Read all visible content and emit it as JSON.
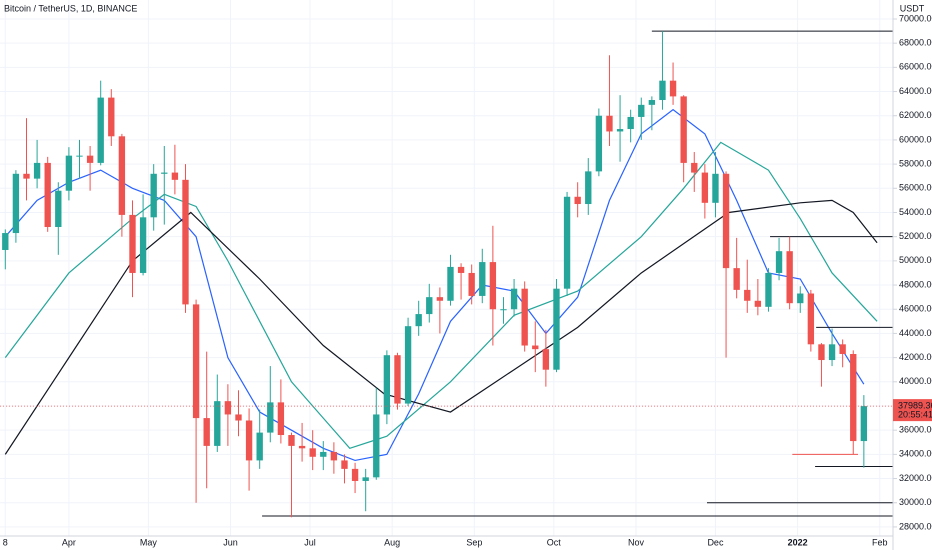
{
  "chart_data": {
    "type": "candlestick",
    "title": "Bitcoin / TetherUS, 1D, BINANCE",
    "y_axis_unit": "USDT",
    "up_color": "#26a69a",
    "down_color": "#ef5350",
    "grid": true,
    "xlim": [
      -2,
      335
    ],
    "ylim": [
      27250,
      71570
    ],
    "xticks": [
      {
        "value": 0,
        "label": "8"
      },
      {
        "value": 24,
        "label": "Apr"
      },
      {
        "value": 54,
        "label": "May"
      },
      {
        "value": 85,
        "label": "Jun"
      },
      {
        "value": 115,
        "label": "Jul"
      },
      {
        "value": 146,
        "label": "Aug"
      },
      {
        "value": 177,
        "label": "Sep"
      },
      {
        "value": 207,
        "label": "Oct"
      },
      {
        "value": 238,
        "label": "Nov"
      },
      {
        "value": 268,
        "label": "Dec"
      },
      {
        "value": 299,
        "label": "2022"
      },
      {
        "value": 330,
        "label": "Feb"
      }
    ],
    "yticks": [
      {
        "value": 28000,
        "label": "28000.00"
      },
      {
        "value": 30000,
        "label": "30000.00"
      },
      {
        "value": 32000,
        "label": "32000.00"
      },
      {
        "value": 34000,
        "label": "34000.00"
      },
      {
        "value": 36000,
        "label": "36000.00"
      },
      {
        "value": 38000,
        "label": "38000.00"
      },
      {
        "value": 40000,
        "label": "40000.00"
      },
      {
        "value": 42000,
        "label": "42000.00"
      },
      {
        "value": 44000,
        "label": "44000.00"
      },
      {
        "value": 46000,
        "label": "46000.00"
      },
      {
        "value": 48000,
        "label": "48000.00"
      },
      {
        "value": 50000,
        "label": "50000.00"
      },
      {
        "value": 52000,
        "label": "52000.00"
      },
      {
        "value": 54000,
        "label": "54000.00"
      },
      {
        "value": 56000,
        "label": "56000.00"
      },
      {
        "value": 58000,
        "label": "58000.00"
      },
      {
        "value": 60000,
        "label": "60000.00"
      },
      {
        "value": 62000,
        "label": "62000.00"
      },
      {
        "value": 64000,
        "label": "64000.00"
      },
      {
        "value": 66000,
        "label": "66000.00"
      },
      {
        "value": 68000,
        "label": "68000.00"
      },
      {
        "value": 70000,
        "label": "70000.00"
      }
    ],
    "x": [
      0,
      4,
      8,
      12,
      16,
      20,
      24,
      28,
      32,
      36,
      40,
      44,
      48,
      52,
      56,
      60,
      64,
      68,
      72,
      76,
      80,
      84,
      88,
      92,
      96,
      100,
      104,
      108,
      112,
      116,
      120,
      124,
      128,
      132,
      136,
      140,
      144,
      148,
      152,
      156,
      160,
      164,
      168,
      172,
      176,
      180,
      184,
      188,
      192,
      196,
      200,
      204,
      208,
      212,
      216,
      220,
      224,
      228,
      232,
      236,
      240,
      244,
      248,
      252,
      256,
      260,
      264,
      268,
      272,
      276,
      280,
      284,
      288,
      292,
      296,
      300,
      304,
      308,
      312,
      316,
      320,
      324
    ],
    "open": [
      50900,
      52300,
      57200,
      56800,
      58100,
      52800,
      55800,
      58700,
      58700,
      58100,
      63500,
      60300,
      53800,
      49000,
      53600,
      57200,
      57300,
      56700,
      46400,
      37000,
      34700,
      38400,
      37300,
      36800,
      33500,
      35800,
      38300,
      35600,
      34700,
      34500,
      33800,
      34200,
      33500,
      32800,
      31800,
      32100,
      37300,
      42200,
      38200,
      44600,
      45600,
      47000,
      46700,
      49500,
      49000,
      47100,
      49900,
      46000,
      46000,
      47700,
      43000,
      42700,
      41000,
      47700,
      55300,
      54700,
      57400,
      62000,
      60700,
      60900,
      61900,
      62900,
      63300,
      64900,
      63600,
      58100,
      57300,
      54800,
      57200,
      49400,
      47600,
      46700,
      46200,
      49000,
      50800,
      46500,
      47300,
      43100,
      41800,
      43100,
      42300,
      35100
    ],
    "high": [
      52600,
      57500,
      61800,
      60000,
      58600,
      56500,
      59400,
      60000,
      59500,
      64900,
      64200,
      60500,
      55000,
      55500,
      58000,
      59500,
      59600,
      58000,
      46800,
      42500,
      40600,
      39800,
      39300,
      37800,
      37700,
      41300,
      40200,
      35800,
      36600,
      36000,
      35100,
      35000,
      34000,
      33300,
      32800,
      39500,
      42600,
      42400,
      45300,
      46700,
      48100,
      47800,
      50500,
      49800,
      49700,
      51000,
      52900,
      47000,
      48500,
      48300,
      45000,
      44300,
      48500,
      55700,
      56500,
      58500,
      62600,
      67000,
      63700,
      62500,
      63500,
      63600,
      69000,
      66400,
      63700,
      59000,
      58000,
      59000,
      57400,
      51900,
      50100,
      48500,
      49400,
      51900,
      52000,
      47900,
      47600,
      43200,
      44400,
      43500,
      42600,
      38900
    ],
    "low": [
      49300,
      51500,
      55000,
      56000,
      52400,
      50500,
      55000,
      56800,
      55800,
      57900,
      59500,
      52000,
      47000,
      48800,
      52500,
      53000,
      55500,
      45700,
      30000,
      31200,
      34200,
      34700,
      35500,
      31000,
      32800,
      35000,
      34900,
      28800,
      33400,
      32700,
      32700,
      32400,
      31600,
      30800,
      29300,
      31900,
      36500,
      37700,
      38000,
      43800,
      44900,
      44000,
      46300,
      46800,
      46400,
      46500,
      43000,
      44800,
      45400,
      42500,
      40800,
      39600,
      40800,
      47100,
      53600,
      53800,
      57000,
      59500,
      58200,
      59800,
      60000,
      60800,
      62500,
      62900,
      56500,
      55700,
      53500,
      53600,
      42000,
      46900,
      45700,
      45500,
      45800,
      48400,
      46000,
      45700,
      42500,
      39600,
      41300,
      41200,
      34000,
      32900
    ],
    "close": [
      52300,
      57200,
      56800,
      58100,
      52800,
      55800,
      58700,
      58700,
      58100,
      63500,
      60300,
      53800,
      49000,
      53600,
      57200,
      57300,
      56700,
      46400,
      37000,
      34700,
      38400,
      37300,
      36800,
      33500,
      35800,
      38300,
      35600,
      34700,
      34500,
      33800,
      34200,
      33500,
      32800,
      31800,
      32100,
      37300,
      42200,
      38200,
      44600,
      45600,
      47000,
      46700,
      49500,
      49000,
      47100,
      49900,
      46000,
      46000,
      47700,
      43000,
      42700,
      41000,
      47700,
      55300,
      54700,
      57400,
      62000,
      60700,
      60900,
      61900,
      62900,
      63300,
      64900,
      63600,
      58100,
      57300,
      54800,
      57200,
      49400,
      47600,
      46700,
      46200,
      49000,
      50800,
      46500,
      47300,
      43100,
      41800,
      43100,
      42300,
      35100,
      37989.36
    ],
    "countdown": "20:55:41",
    "series": [
      {
        "color": "#2962ff",
        "x": [
          0,
          12,
          24,
          36,
          48,
          60,
          72,
          84,
          96,
          108,
          120,
          132,
          144,
          156,
          168,
          180,
          192,
          204,
          216,
          228,
          240,
          252,
          264,
          276,
          288,
          300,
          312,
          324
        ],
        "values": [
          52000,
          55000,
          56500,
          57500,
          56000,
          55000,
          52000,
          42000,
          37500,
          36000,
          34500,
          33500,
          34000,
          39000,
          45000,
          48000,
          47500,
          44000,
          47000,
          55000,
          60500,
          62500,
          60500,
          55000,
          49000,
          48500,
          44000,
          39800
        ]
      },
      {
        "color": "#26a69a",
        "x": [
          0,
          24,
          48,
          60,
          72,
          84,
          96,
          108,
          120,
          130,
          144,
          168,
          192,
          216,
          240,
          256,
          270,
          288,
          300,
          312,
          329
        ],
        "values": [
          42000,
          49000,
          53500,
          55500,
          54500,
          50000,
          45000,
          40000,
          37000,
          34500,
          35500,
          40000,
          45500,
          47500,
          52000,
          56000,
          59800,
          57500,
          53500,
          49000,
          45000
        ]
      },
      {
        "color": "#131722",
        "x": [
          0,
          24,
          48,
          70,
          96,
          120,
          143,
          168,
          192,
          216,
          240,
          273,
          300,
          312,
          320,
          329
        ],
        "values": [
          34000,
          42000,
          50000,
          54000,
          48500,
          43000,
          39000,
          37500,
          41000,
          44500,
          49000,
          54000,
          54800,
          55000,
          54000,
          51500
        ]
      }
    ],
    "levels": [
      {
        "value": 69000,
        "from": 244,
        "color": "#131722"
      },
      {
        "value": 52000,
        "from": 288.6,
        "color": "#131722"
      },
      {
        "value": 44500,
        "from": 306,
        "color": "#131722"
      },
      {
        "value": 33000,
        "from": 305.6,
        "color": "#131722"
      },
      {
        "value": 30000,
        "from": 264.8,
        "color": "#131722"
      },
      {
        "value": 28900,
        "from": 96.9,
        "color": "#131722"
      },
      {
        "value": 34000,
        "from": 297,
        "to": 321.8,
        "color": "#ef5350"
      }
    ]
  }
}
